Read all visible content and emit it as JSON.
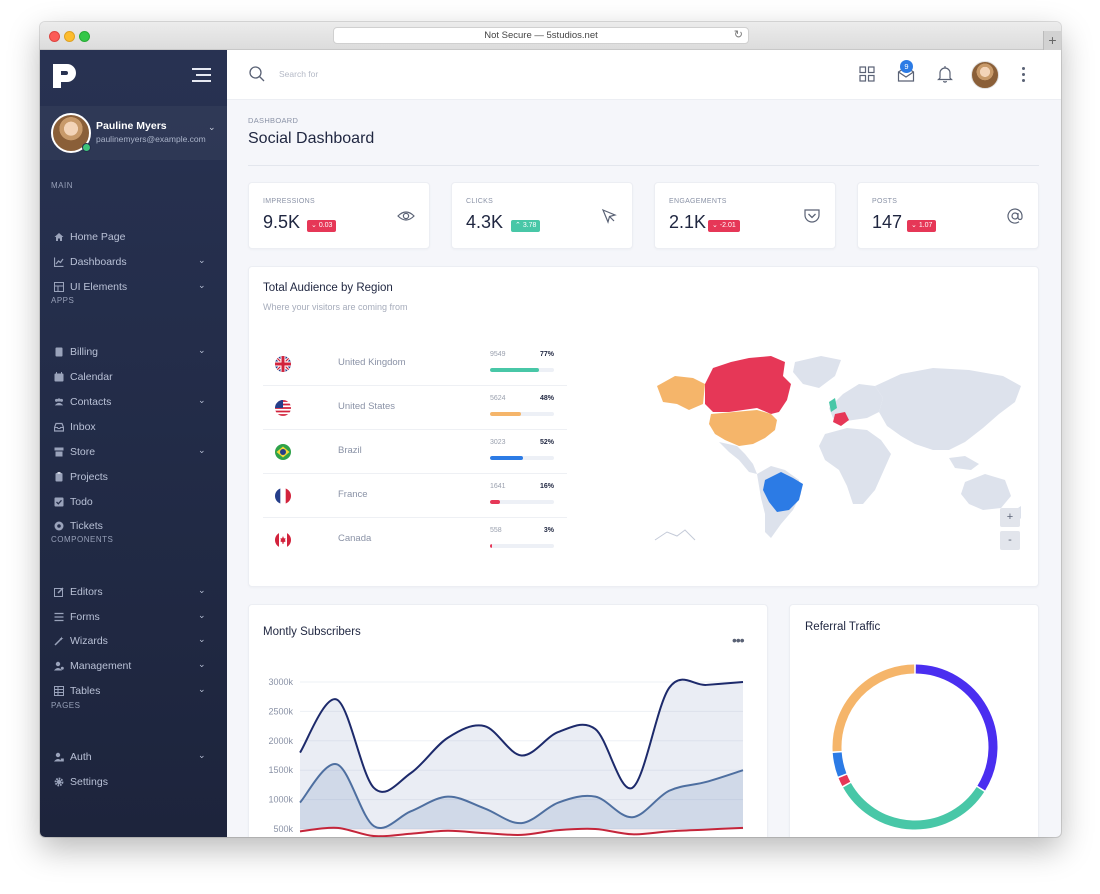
{
  "browser": {
    "url": "Not Secure — 5studios.net",
    "new_tab": "+"
  },
  "sidebar": {
    "user": {
      "name": "Pauline Myers",
      "email": "paulinemyers@example.com"
    },
    "sections": {
      "main": "MAIN",
      "apps": "APPS",
      "components": "COMPONENTS",
      "pages": "PAGES"
    },
    "items": {
      "home": "Home Page",
      "dashboards": "Dashboards",
      "ui_elements": "UI Elements",
      "billing": "Billing",
      "calendar": "Calendar",
      "contacts": "Contacts",
      "inbox": "Inbox",
      "store": "Store",
      "projects": "Projects",
      "todo": "Todo",
      "tickets": "Tickets",
      "editors": "Editors",
      "forms": "Forms",
      "wizards": "Wizards",
      "management": "Management",
      "tables": "Tables",
      "auth": "Auth",
      "settings": "Settings"
    }
  },
  "topbar": {
    "search_placeholder": "Search for",
    "notification_count": "9"
  },
  "page": {
    "breadcrumb": "DASHBOARD",
    "title": "Social Dashboard"
  },
  "stats": [
    {
      "label": "IMPRESSIONS",
      "value": "9.5K",
      "change": "0.03",
      "direction": "down"
    },
    {
      "label": "CLICKS",
      "value": "4.3K",
      "change": "3.78",
      "direction": "up"
    },
    {
      "label": "ENGAGEMENTS",
      "value": "2.1K",
      "change": "-2.01",
      "direction": "down"
    },
    {
      "label": "POSTS",
      "value": "147",
      "change": "1.07",
      "direction": "down"
    }
  ],
  "audience": {
    "title": "Total Audience by Region",
    "subtitle": "Where your visitors are coming from",
    "rows": [
      {
        "country": "United Kingdom",
        "visitors": "9549",
        "percent": "77%",
        "fill": 0.77,
        "color": "#48c7a7"
      },
      {
        "country": "United States",
        "visitors": "5624",
        "percent": "48%",
        "fill": 0.48,
        "color": "#f5b56a"
      },
      {
        "country": "Brazil",
        "visitors": "3023",
        "percent": "52%",
        "fill": 0.52,
        "color": "#2c7be5"
      },
      {
        "country": "France",
        "visitors": "1641",
        "percent": "16%",
        "fill": 0.16,
        "color": "#e63757"
      },
      {
        "country": "Canada",
        "visitors": "558",
        "percent": "3%",
        "fill": 0.03,
        "color": "#e63757"
      }
    ],
    "zoom_in": "+",
    "zoom_out": "-"
  },
  "subscribers": {
    "title": "Montly Subscribers",
    "more": "•••"
  },
  "referral": {
    "title": "Referral Traffic"
  },
  "chart_data": [
    {
      "type": "area",
      "title": "Montly Subscribers",
      "xlabel": "",
      "ylabel": "",
      "y_ticks": [
        "3000k",
        "2500k",
        "2000k",
        "1500k",
        "1000k",
        "500k"
      ],
      "ylim": [
        500,
        3000
      ],
      "x": [
        0,
        1,
        2,
        3,
        4,
        5,
        6,
        7,
        8,
        9,
        10,
        11,
        12
      ],
      "series": [
        {
          "values": [
            1800,
            2700,
            1200,
            1450,
            2050,
            2250,
            1750,
            2150,
            2200,
            1200,
            2900,
            2950,
            3000
          ],
          "color": "#1d2a6b"
        },
        {
          "values": [
            950,
            1600,
            550,
            800,
            1050,
            850,
            600,
            950,
            1050,
            700,
            1150,
            1300,
            1500
          ],
          "color": "#4e6fa0"
        },
        {
          "values": [
            460,
            520,
            380,
            420,
            470,
            430,
            400,
            480,
            500,
            410,
            460,
            490,
            520
          ],
          "color": "#c4253a"
        }
      ]
    },
    {
      "type": "pie",
      "title": "Referral Traffic",
      "slices": [
        {
          "value": 34,
          "color": "#4a2ef0"
        },
        {
          "value": 33,
          "color": "#48c7a7"
        },
        {
          "value": 2,
          "color": "#e63757"
        },
        {
          "value": 5,
          "color": "#2c7be5"
        },
        {
          "value": 26,
          "color": "#f5b56a"
        }
      ]
    }
  ]
}
